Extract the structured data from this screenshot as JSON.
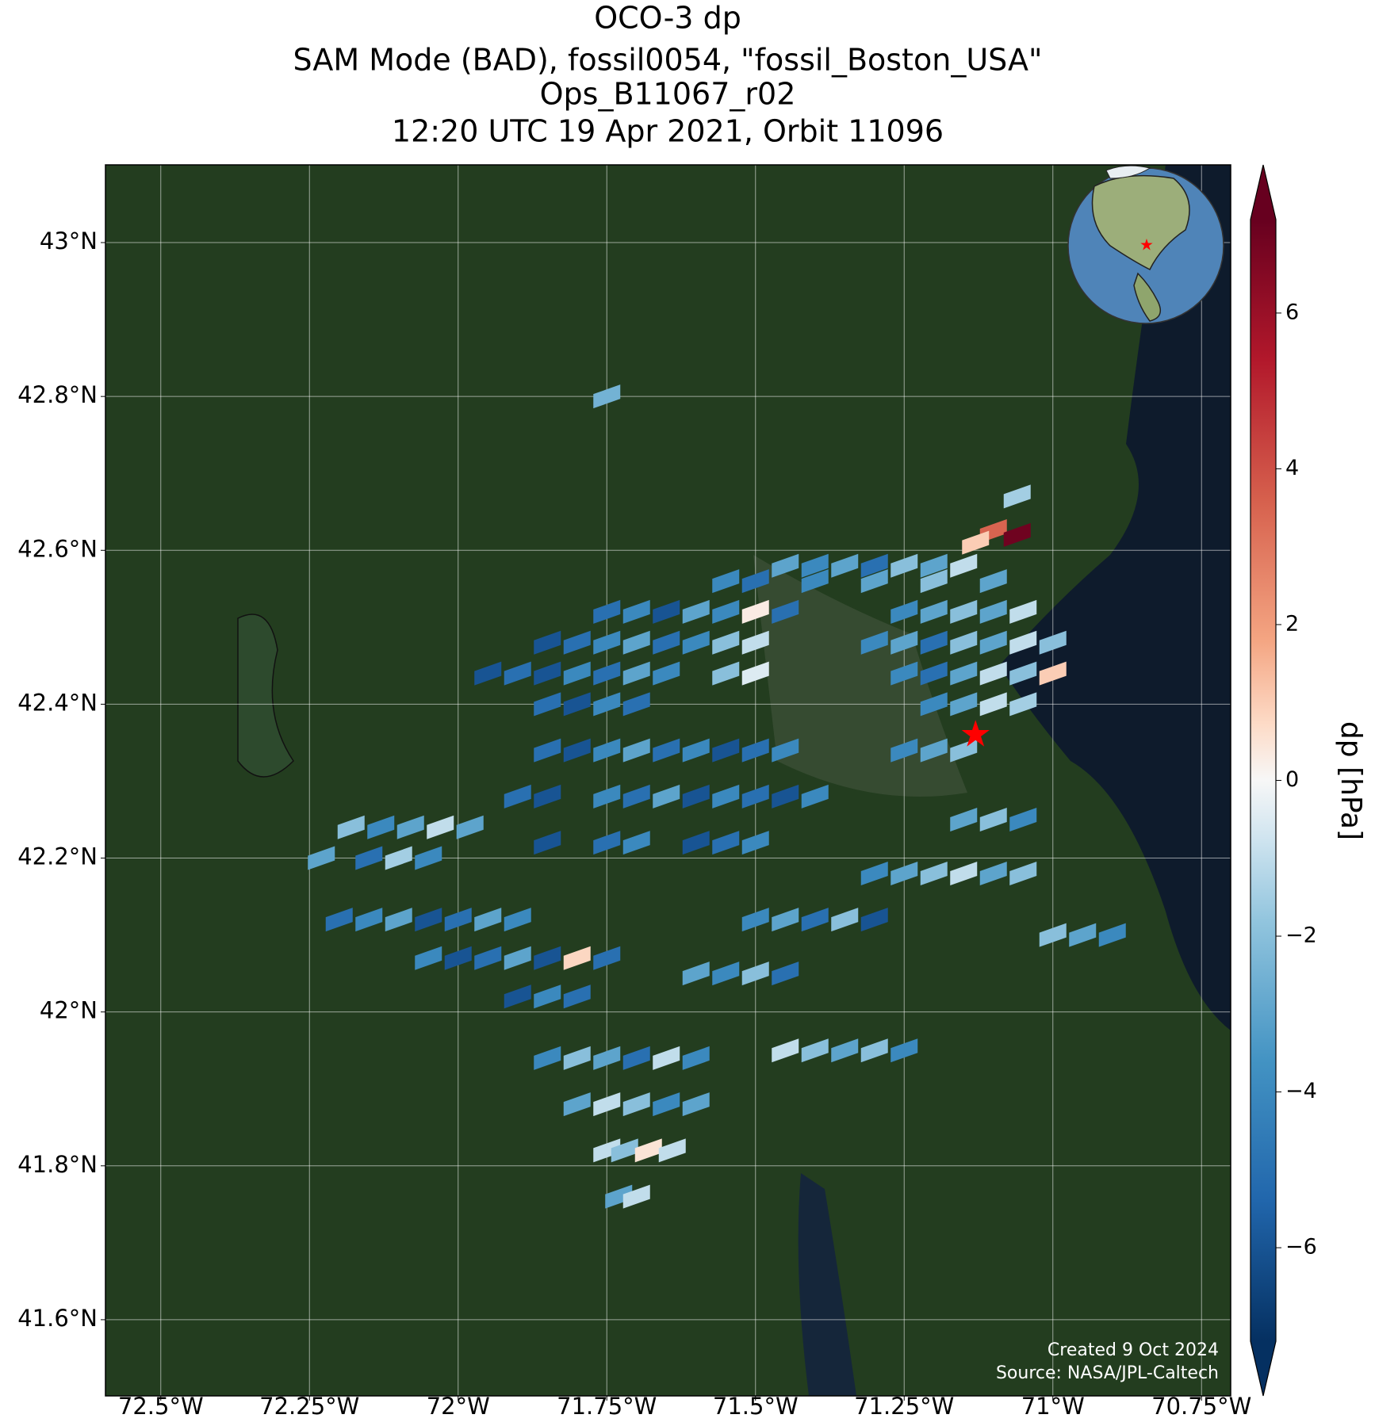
{
  "chart_data": {
    "type": "map",
    "title": [
      "OCO-3 dp",
      "SAM Mode (BAD), fossil0054, \"fossil_Boston_USA\"",
      "Ops_B11067_r02",
      "12:20 UTC 19 Apr 2021, Orbit 11096"
    ],
    "xlim": [
      -72.593,
      -70.701
    ],
    "ylim": [
      41.501,
      43.101
    ],
    "xticks": [
      {
        "value": -72.5,
        "label": "72.5°W"
      },
      {
        "value": -72.25,
        "label": "72.25°W"
      },
      {
        "value": -72,
        "label": "72°W"
      },
      {
        "value": -71.75,
        "label": "71.75°W"
      },
      {
        "value": -71.5,
        "label": "71.5°W"
      },
      {
        "value": -71.25,
        "label": "71.25°W"
      },
      {
        "value": -71,
        "label": "71°W"
      },
      {
        "value": -70.75,
        "label": "70.75°W"
      }
    ],
    "yticks": [
      {
        "value": 43,
        "label": "43°N"
      },
      {
        "value": 42.8,
        "label": "42.8°N"
      },
      {
        "value": 42.6,
        "label": "42.6°N"
      },
      {
        "value": 42.4,
        "label": "42.4°N"
      },
      {
        "value": 42.2,
        "label": "42.2°N"
      },
      {
        "value": 42,
        "label": "42°N"
      },
      {
        "value": 41.8,
        "label": "41.8°N"
      },
      {
        "value": 41.6,
        "label": "41.6°N"
      }
    ],
    "grid": true,
    "colorbar": {
      "label": "dp [hPa]",
      "lim": [
        -7.2,
        7.2
      ],
      "ticks": [
        {
          "value": 6,
          "label": "6"
        },
        {
          "value": 4,
          "label": "4"
        },
        {
          "value": 2,
          "label": "2"
        },
        {
          "value": 0,
          "label": "0"
        },
        {
          "value": -2,
          "label": "−2"
        },
        {
          "value": -4,
          "label": "−4"
        },
        {
          "value": -6,
          "label": "−6"
        }
      ]
    },
    "site": {
      "lon": -71.13,
      "lat": 42.36
    },
    "credits": [
      "Created 9 Oct 2024",
      "Source: NASA/JPL-Caltech"
    ],
    "x": [
      -71.45,
      -71.4,
      -71.35,
      -71.3,
      -71.25,
      -71.2,
      -71.15,
      -71.55,
      -71.5,
      -71.4,
      -71.3,
      -71.2,
      -71.1,
      -71.75,
      -71.7,
      -71.65,
      -71.6,
      -71.55,
      -71.5,
      -71.45,
      -71.25,
      -71.2,
      -71.15,
      -71.1,
      -71.05,
      -71.85,
      -71.8,
      -71.75,
      -71.7,
      -71.65,
      -71.6,
      -71.55,
      -71.5,
      -71.3,
      -71.25,
      -71.2,
      -71.15,
      -71.1,
      -71.05,
      -71.0,
      -71.95,
      -71.9,
      -71.85,
      -71.8,
      -71.75,
      -71.7,
      -71.65,
      -71.55,
      -71.5,
      -71.25,
      -71.2,
      -71.15,
      -71.1,
      -71.05,
      -71.0,
      -71.85,
      -71.8,
      -71.75,
      -71.7,
      -71.2,
      -71.15,
      -71.1,
      -71.05,
      -71.85,
      -71.8,
      -71.75,
      -71.7,
      -71.65,
      -71.6,
      -71.55,
      -71.5,
      -71.45,
      -71.25,
      -71.2,
      -71.15,
      -71.9,
      -71.85,
      -71.75,
      -71.7,
      -71.65,
      -71.6,
      -71.55,
      -71.5,
      -71.45,
      -71.4,
      -71.85,
      -71.75,
      -71.7,
      -71.6,
      -71.55,
      -71.5,
      -72.18,
      -72.13,
      -72.08,
      -72.03,
      -71.98,
      -72.23,
      -72.15,
      -72.1,
      -72.05,
      -72.2,
      -72.15,
      -72.1,
      -72.05,
      -72.0,
      -71.95,
      -71.9,
      -72.05,
      -72.0,
      -71.95,
      -71.9,
      -71.85,
      -71.8,
      -71.75,
      -71.9,
      -71.85,
      -71.8,
      -71.85,
      -71.8,
      -71.75,
      -71.7,
      -71.65,
      -71.6,
      -71.8,
      -71.75,
      -71.7,
      -71.65,
      -71.6,
      -71.75,
      -71.72,
      -71.68,
      -71.64,
      -71.73,
      -71.7,
      -71.6,
      -71.55,
      -71.5,
      -71.45,
      -71.5,
      -71.45,
      -71.4,
      -71.35,
      -71.3,
      -71.3,
      -71.25,
      -71.2,
      -71.15,
      -71.1,
      -71.05,
      -71.15,
      -71.1,
      -71.05,
      -71.45,
      -71.4,
      -71.35,
      -71.3,
      -71.25,
      -71.0,
      -70.95,
      -70.9,
      -71.1,
      -71.06,
      -71.13,
      -71.75,
      -71.06
    ],
    "y": [
      42.58,
      42.58,
      42.58,
      42.58,
      42.58,
      42.58,
      42.58,
      42.56,
      42.56,
      42.56,
      42.56,
      42.56,
      42.56,
      42.52,
      42.52,
      42.52,
      42.52,
      42.52,
      42.52,
      42.52,
      42.52,
      42.52,
      42.52,
      42.52,
      42.52,
      42.48,
      42.48,
      42.48,
      42.48,
      42.48,
      42.48,
      42.48,
      42.48,
      42.48,
      42.48,
      42.48,
      42.48,
      42.48,
      42.48,
      42.48,
      42.44,
      42.44,
      42.44,
      42.44,
      42.44,
      42.44,
      42.44,
      42.44,
      42.44,
      42.44,
      42.44,
      42.44,
      42.44,
      42.44,
      42.44,
      42.4,
      42.4,
      42.4,
      42.4,
      42.4,
      42.4,
      42.4,
      42.4,
      42.34,
      42.34,
      42.34,
      42.34,
      42.34,
      42.34,
      42.34,
      42.34,
      42.34,
      42.34,
      42.34,
      42.34,
      42.28,
      42.28,
      42.28,
      42.28,
      42.28,
      42.28,
      42.28,
      42.28,
      42.28,
      42.28,
      42.22,
      42.22,
      42.22,
      42.22,
      42.22,
      42.22,
      42.24,
      42.24,
      42.24,
      42.24,
      42.24,
      42.2,
      42.2,
      42.2,
      42.2,
      42.12,
      42.12,
      42.12,
      42.12,
      42.12,
      42.12,
      42.12,
      42.07,
      42.07,
      42.07,
      42.07,
      42.07,
      42.07,
      42.07,
      42.02,
      42.02,
      42.02,
      41.94,
      41.94,
      41.94,
      41.94,
      41.94,
      41.94,
      41.88,
      41.88,
      41.88,
      41.88,
      41.88,
      41.82,
      41.82,
      41.82,
      41.82,
      41.76,
      41.76,
      42.05,
      42.05,
      42.05,
      42.05,
      42.12,
      42.12,
      42.12,
      42.12,
      42.12,
      42.18,
      42.18,
      42.18,
      42.18,
      42.18,
      42.18,
      42.25,
      42.25,
      42.25,
      41.95,
      41.95,
      41.95,
      41.95,
      41.95,
      42.1,
      42.1,
      42.1,
      42.625,
      42.62,
      42.61,
      42.8,
      42.67
    ],
    "values": [
      -3,
      -4,
      -3,
      -5,
      -2,
      -3,
      -1,
      -4,
      -5,
      -4,
      -3,
      -2,
      -3,
      -5,
      -4,
      -6,
      -3,
      -4,
      0.3,
      -5,
      -4,
      -3,
      -2,
      -3,
      -1,
      -6,
      -5,
      -4,
      -3,
      -5,
      -4,
      -2,
      -1,
      -4,
      -3,
      -5,
      -2,
      -3,
      -1,
      -2,
      -6,
      -5,
      -6,
      -4,
      -5,
      -3,
      -4,
      -2,
      -0.5,
      -4,
      -5,
      -3,
      -1,
      -2,
      1,
      -5,
      -6,
      -4,
      -5,
      -4,
      -3,
      -1,
      -1.5,
      -5,
      -6,
      -4,
      -3,
      -5,
      -4,
      -6,
      -5,
      -4,
      -4,
      -3,
      -2,
      -5,
      -6,
      -4,
      -5,
      -3,
      -6,
      -4,
      -5,
      -6,
      -4,
      -6,
      -5,
      -4,
      -6,
      -5,
      -4,
      -2,
      -4,
      -3,
      -1,
      -3,
      -3,
      -5,
      -1.5,
      -4,
      -5,
      -4,
      -3,
      -6,
      -5,
      -3,
      -4,
      -4,
      -6,
      -5,
      -3,
      -6,
      0.8,
      -5,
      -6,
      -4,
      -5,
      -4,
      -2,
      -3,
      -5,
      -1,
      -4,
      -3,
      -1,
      -2,
      -4,
      -3,
      -1,
      -2,
      0.5,
      -1,
      -3,
      -1,
      -3,
      -4,
      -2,
      -5,
      -4,
      -3,
      -5,
      -2,
      -6,
      -4,
      -3,
      -2,
      -1,
      -3,
      -2,
      -3,
      -2,
      -4,
      -1,
      -2,
      -3,
      -2,
      -4,
      -2,
      -3,
      -4,
      3.5,
      7,
      1,
      -2.5,
      -1.5
    ]
  }
}
